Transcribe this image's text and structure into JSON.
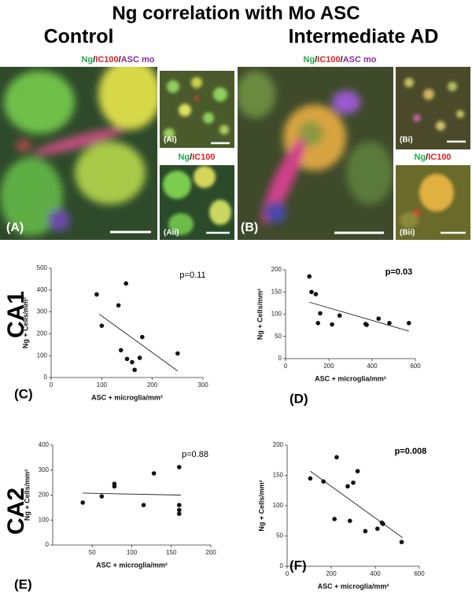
{
  "figure": {
    "title": "Ng correlation with Mo ASC",
    "groups": [
      "Control",
      "Intermediate AD"
    ],
    "rows": [
      "CA1",
      "CA2"
    ],
    "stain_triple": [
      "Ng",
      "/",
      "IC100",
      "/",
      "ASC mo"
    ],
    "stain_double": [
      "Ng",
      "/",
      "IC100"
    ],
    "image_labels": [
      "(A)",
      "(Ai)",
      "(Aii)",
      "(B)",
      "(Bi)",
      "(Bii)"
    ]
  },
  "chart_data": [
    {
      "type": "scatter",
      "panel": "(C)",
      "y_label": "Ng + Cells/mm²",
      "x_label": "ASC + microglia/mm²",
      "annotation": "p=0.11",
      "annotation_bold": false,
      "color": "#111111",
      "x": [
        90,
        100,
        133,
        138,
        148,
        150,
        160,
        165,
        175,
        180,
        250
      ],
      "y": [
        380,
        237,
        330,
        125,
        430,
        85,
        70,
        35,
        90,
        185,
        110
      ],
      "fit": {
        "x": [
          95,
          250
        ],
        "y": [
          290,
          30
        ]
      },
      "xlim": [
        0,
        300
      ],
      "ylim": [
        0,
        500
      ],
      "xticks": [
        0,
        100,
        200,
        300
      ],
      "yticks": [
        0,
        100,
        200,
        300,
        400,
        500
      ]
    },
    {
      "type": "scatter",
      "panel": "(D)",
      "y_label": "Ng + Cells/mm²",
      "x_label": "ASC + microglia/mm²",
      "annotation": "p=0.03",
      "annotation_bold": true,
      "color": "#111111",
      "x": [
        110,
        120,
        140,
        150,
        160,
        215,
        250,
        370,
        375,
        430,
        480,
        570
      ],
      "y": [
        185,
        150,
        145,
        80,
        102,
        77,
        97,
        78,
        76,
        90,
        80,
        80
      ],
      "fit": {
        "x": [
          110,
          570
        ],
        "y": [
          127,
          62
        ]
      },
      "xlim": [
        0,
        600
      ],
      "ylim": [
        0,
        200
      ],
      "xticks": [
        0,
        200,
        400,
        600
      ],
      "yticks": [
        0,
        50,
        100,
        150,
        200
      ]
    },
    {
      "type": "scatter",
      "panel": "(E)",
      "y_label": "Ng + Cells/mm²",
      "x_label": "ASC + microglia/mm²",
      "annotation": "p=0.88",
      "annotation_bold": false,
      "color": "#111111",
      "x": [
        38,
        62,
        78,
        78,
        115,
        128,
        160,
        160,
        160,
        160
      ],
      "y": [
        170,
        195,
        245,
        235,
        160,
        287,
        312,
        160,
        140,
        125
      ],
      "fit": {
        "x": [
          38,
          162
        ],
        "y": [
          208,
          200
        ]
      },
      "xlim": [
        0,
        200
      ],
      "ylim": [
        0,
        400
      ],
      "xticks": [
        50,
        100,
        150,
        200
      ],
      "yticks": [
        0,
        100,
        200,
        300,
        400
      ]
    },
    {
      "type": "scatter",
      "panel": "(F)",
      "y_label": "Ng + Cells/mm²",
      "x_label": "ASC + microglia/mm²",
      "annotation": "p=0.008",
      "annotation_bold": true,
      "color": "#111111",
      "x": [
        105,
        165,
        215,
        225,
        275,
        285,
        300,
        320,
        355,
        410,
        430,
        435,
        520
      ],
      "y": [
        145,
        140,
        78,
        180,
        132,
        75,
        138,
        157,
        58,
        62,
        72,
        70,
        40
      ],
      "fit": {
        "x": [
          105,
          525
        ],
        "y": [
          157,
          47
        ]
      },
      "xlim": [
        0,
        600
      ],
      "ylim": [
        0,
        200
      ],
      "xticks": [
        0,
        200,
        400,
        600
      ],
      "yticks": [
        0,
        50,
        100,
        150,
        200
      ]
    }
  ]
}
